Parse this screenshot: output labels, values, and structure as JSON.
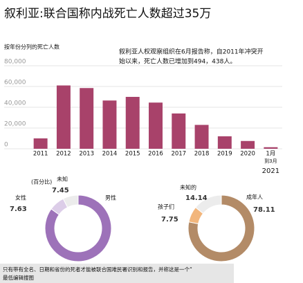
{
  "chart_data": [
    {
      "type": "bar",
      "title": "叙利亚:联合国称内战死亡人数超过35万",
      "subtitle": "按年份分列的死亡人数",
      "annotation": [
        "叙利亚人权观察组织在6月报告称，自2011年冲突开",
        "始以来，死亡人数已增加到494，438人。"
      ],
      "categories": [
        "2011",
        "2012",
        "2013",
        "2014",
        "2015",
        "2016",
        "2017",
        "2018",
        "2019",
        "2020",
        "1月"
      ],
      "last_category_note": [
        "到3月",
        "2021"
      ],
      "values": [
        10000,
        61000,
        58500,
        46500,
        50000,
        44500,
        34000,
        23000,
        12000,
        7500,
        1500
      ],
      "color": "#a8426a",
      "ylim": [
        0,
        80000
      ],
      "yticks": [
        {
          "value": 0,
          "label": "0"
        },
        {
          "value": 20000,
          "label": "20,000"
        },
        {
          "value": 40000,
          "label": "40,000"
        },
        {
          "value": 60000,
          "label": "60,000"
        },
        {
          "value": 80000,
          "label": "80,000"
        }
      ],
      "grid": true
    },
    {
      "type": "donut",
      "heading": "(百分比)",
      "categories": [
        "男性",
        "女性",
        "未知"
      ],
      "values": [
        84.92,
        7.63,
        7.45
      ],
      "value_labels": [
        null,
        "7.63",
        "7.45"
      ],
      "colors": [
        "#9d72b9",
        "#dccde8",
        "#ececec"
      ]
    },
    {
      "type": "donut",
      "categories": [
        "成年人",
        "孩子们",
        "未知的"
      ],
      "values": [
        78.11,
        7.75,
        14.14
      ],
      "value_labels": [
        "78.11",
        "7.75",
        "14.14"
      ],
      "colors": [
        "#b38b67",
        "#f2b67c",
        "#ececec"
      ]
    }
  ],
  "footnote": [
    "只有带有全名、日期和省份的死者才能被联合国难民署识别和报告，并称这是一个“",
    "最低编辑搜图"
  ]
}
